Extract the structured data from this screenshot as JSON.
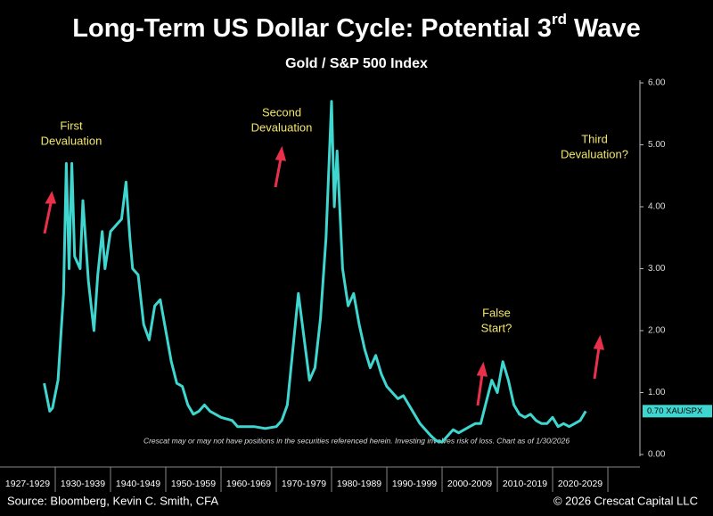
{
  "chart_data": {
    "type": "line",
    "title": "Long-Term US Dollar Cycle: Potential 3",
    "title_superscript": "rd",
    "title_end": " Wave",
    "subtitle": "Gold / S&P 500 Index",
    "categories": [
      "1927-1929",
      "1930-1939",
      "1940-1949",
      "1950-1959",
      "1960-1969",
      "1970-1979",
      "1980-1989",
      "1990-1999",
      "2000-2009",
      "2010-2019",
      "2020-2029"
    ],
    "xticks": [
      1930,
      1940,
      1950,
      1960,
      1970,
      1980,
      1990,
      2000,
      2010,
      2020,
      2030
    ],
    "xlim": [
      1920,
      2035.8
    ],
    "ylim": [
      0,
      6
    ],
    "yticks": [
      {
        "value": 0,
        "label": "0.00"
      },
      {
        "value": 1,
        "label": "1.00"
      },
      {
        "value": 2,
        "label": "2.00"
      },
      {
        "value": 3,
        "label": "3.00"
      },
      {
        "value": 4,
        "label": "4.00"
      },
      {
        "value": 5,
        "label": "5.00"
      },
      {
        "value": 6,
        "label": "6.00"
      }
    ],
    "series": [
      {
        "name": "XAU/SPX",
        "color": "#3fd6d0",
        "x": [
          1928,
          1929,
          1929.5,
          1930.5,
          1931.5,
          1932,
          1932.5,
          1933,
          1933.5,
          1934.5,
          1935,
          1936,
          1937,
          1937.7,
          1938.5,
          1939,
          1940,
          1941,
          1942,
          1942.8,
          1943.5,
          1944,
          1945,
          1946,
          1947,
          1948,
          1949,
          1950,
          1951,
          1952,
          1953,
          1954,
          1955,
          1956,
          1957,
          1958,
          1960,
          1962,
          1963,
          1966,
          1968,
          1970,
          1971,
          1972,
          1973,
          1974,
          1975,
          1976,
          1977,
          1978,
          1979,
          1980,
          1980.5,
          1981,
          1982,
          1983,
          1984,
          1985,
          1986,
          1987,
          1988,
          1989,
          1990,
          1991,
          1992,
          1993,
          1994,
          1995,
          1996,
          1997,
          1998,
          1999,
          2000,
          2001,
          2002,
          2003,
          2004,
          2005,
          2006,
          2007,
          2008,
          2009,
          2010,
          2011,
          2012,
          2013,
          2014,
          2015,
          2016,
          2017,
          2018,
          2019,
          2020,
          2021,
          2022,
          2023,
          2024,
          2025,
          2026
        ],
        "values": [
          1.15,
          0.7,
          0.75,
          1.2,
          2.6,
          4.7,
          3.0,
          4.7,
          3.2,
          3.0,
          4.1,
          2.8,
          2.0,
          2.9,
          3.6,
          3.0,
          3.6,
          3.7,
          3.8,
          4.4,
          3.5,
          3.0,
          2.9,
          2.1,
          1.85,
          2.4,
          2.5,
          2.0,
          1.5,
          1.15,
          1.1,
          0.8,
          0.65,
          0.7,
          0.8,
          0.7,
          0.6,
          0.55,
          0.45,
          0.45,
          0.42,
          0.45,
          0.55,
          0.8,
          1.7,
          2.6,
          1.9,
          1.2,
          1.4,
          2.2,
          3.5,
          5.7,
          4.0,
          4.9,
          3.0,
          2.4,
          2.6,
          2.1,
          1.7,
          1.4,
          1.6,
          1.3,
          1.1,
          1.0,
          0.9,
          0.95,
          0.8,
          0.65,
          0.5,
          0.4,
          0.3,
          0.22,
          0.2,
          0.3,
          0.4,
          0.35,
          0.4,
          0.45,
          0.5,
          0.5,
          0.85,
          1.2,
          1.0,
          1.5,
          1.2,
          0.8,
          0.65,
          0.6,
          0.65,
          0.55,
          0.5,
          0.5,
          0.6,
          0.45,
          0.5,
          0.45,
          0.5,
          0.55,
          0.7
        ]
      }
    ],
    "last_value_label": "0.70 XAU/SPX",
    "annotations": [
      "First",
      "Devaluation",
      "Second",
      "Devaluation",
      "Third",
      "Devaluation?",
      "False",
      "Start?"
    ],
    "disclaimer": "Crescat may or may not have positions in the securities referenced herein. Investing involves risk of loss. Chart as of 1/30/2026",
    "source": "Source: Bloomberg, Kevin C. Smith, CFA",
    "copyright": "© 2026 Crescat Capital LLC"
  }
}
